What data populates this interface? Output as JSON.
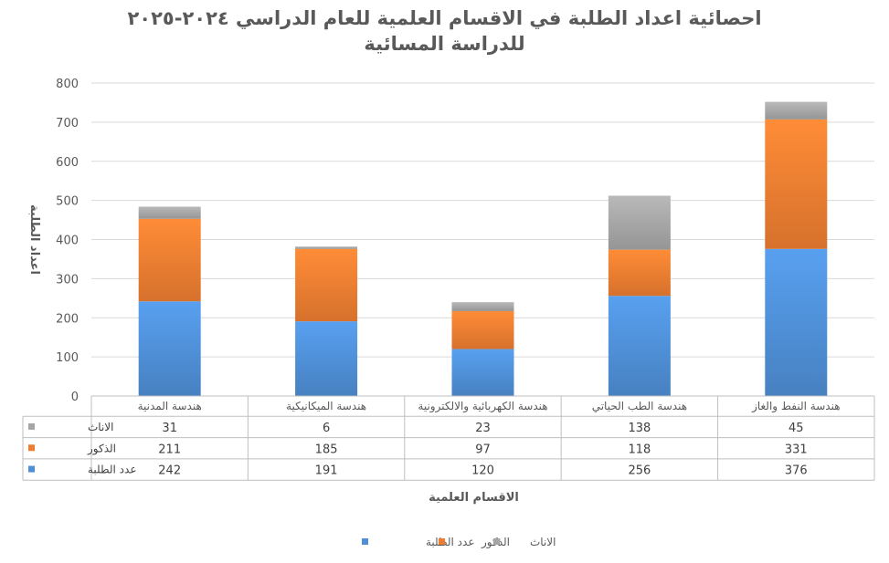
{
  "chart_data": {
    "type": "bar",
    "stacked": true,
    "title": "احصائية اعداد الطلبة في الاقسام العلمية للعام الدراسي ٢٠٢٤-٢٠٢٥",
    "subtitle": "للدراسة المسائية",
    "xlabel": "الاقسام العلمية",
    "ylabel": "اعداد الطلبة",
    "ylim": [
      0,
      800
    ],
    "yticks": [
      0,
      100,
      200,
      300,
      400,
      500,
      600,
      700,
      800
    ],
    "grid": true,
    "legend_position": "bottom",
    "data_table": true,
    "categories": [
      "هندسة المدنية",
      "هندسة الميكانيكية",
      "هندسة الكهربائية والالكترونية",
      "هندسة الطب الحياتي",
      "هندسة النفط والغاز"
    ],
    "series": [
      {
        "name": "عدد الطلبة",
        "color": "#4f8fd6",
        "values": [
          242,
          191,
          120,
          256,
          376
        ]
      },
      {
        "name": "الذكور",
        "color": "#ee7d31",
        "values": [
          211,
          185,
          97,
          118,
          331
        ]
      },
      {
        "name": "الاناث",
        "color": "#a5a5a5",
        "values": [
          31,
          6,
          23,
          138,
          45
        ]
      }
    ]
  }
}
